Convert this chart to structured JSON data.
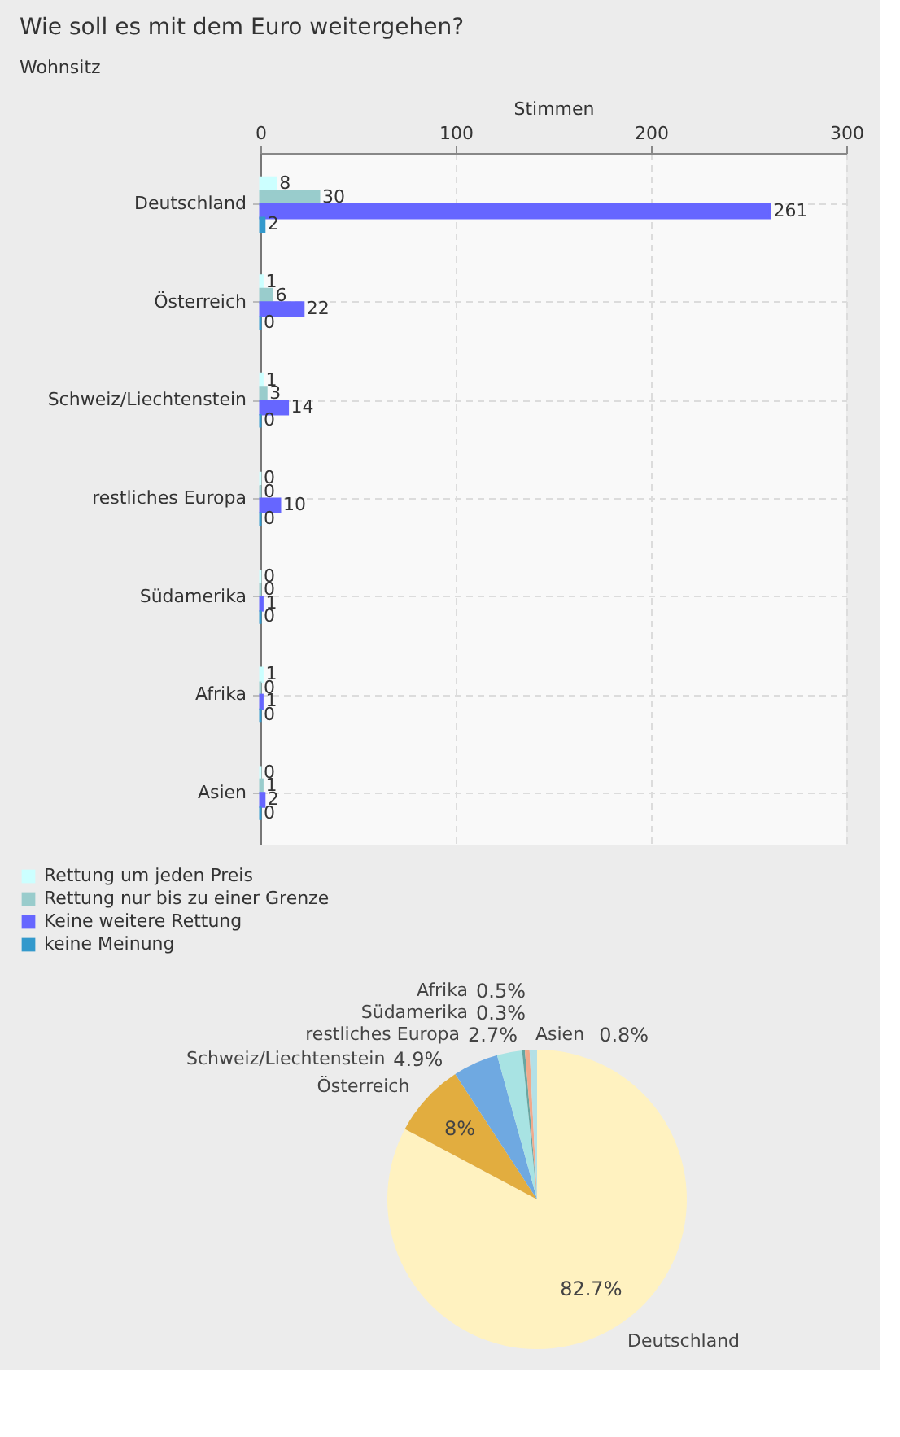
{
  "chart_data": [
    {
      "type": "bar",
      "orientation": "horizontal",
      "title": "Wie soll es mit dem Euro weitergehen?",
      "subtitle": "Wohnsitz",
      "xlabel": "Stimmen",
      "categories": [
        "Deutschland",
        "Österreich",
        "Schweiz/Liechtenstein",
        "restliches Europa",
        "Südamerika",
        "Afrika",
        "Asien"
      ],
      "series": [
        {
          "name": "Rettung um jeden Preis",
          "color": "#ccffff",
          "values": [
            8,
            1,
            1,
            0,
            0,
            1,
            0
          ]
        },
        {
          "name": "Rettung nur bis zu einer Grenze",
          "color": "#99cccc",
          "values": [
            30,
            6,
            3,
            0,
            0,
            0,
            1
          ]
        },
        {
          "name": "Keine weitere Rettung",
          "color": "#6666ff",
          "values": [
            261,
            22,
            14,
            10,
            1,
            1,
            2
          ]
        },
        {
          "name": "keine Meinung",
          "color": "#3399cc",
          "values": [
            2,
            0,
            0,
            0,
            0,
            0,
            0
          ]
        }
      ],
      "xlim": [
        0,
        300
      ],
      "xticks": [
        0,
        100,
        200,
        300
      ],
      "grid": true,
      "legend": "bottom left",
      "data_labels": true
    },
    {
      "type": "pie",
      "categories": [
        "Deutschland",
        "Österreich",
        "Schweiz/Liechtenstein",
        "restliches Europa",
        "Südamerika",
        "Afrika",
        "Asien"
      ],
      "values": [
        82.7,
        8,
        4.9,
        2.7,
        0.3,
        0.5,
        0.8
      ],
      "colors": [
        "#fff2c0",
        "#e2ad3f",
        "#6fa9e1",
        "#a8e3e3",
        "#68a6a2",
        "#f1a98b",
        "#b3e0e6"
      ],
      "value_labels": [
        "82.7%",
        "8%",
        "4.9%",
        "2.7%",
        "0.3%",
        "0.5%",
        "0.8%"
      ]
    }
  ]
}
